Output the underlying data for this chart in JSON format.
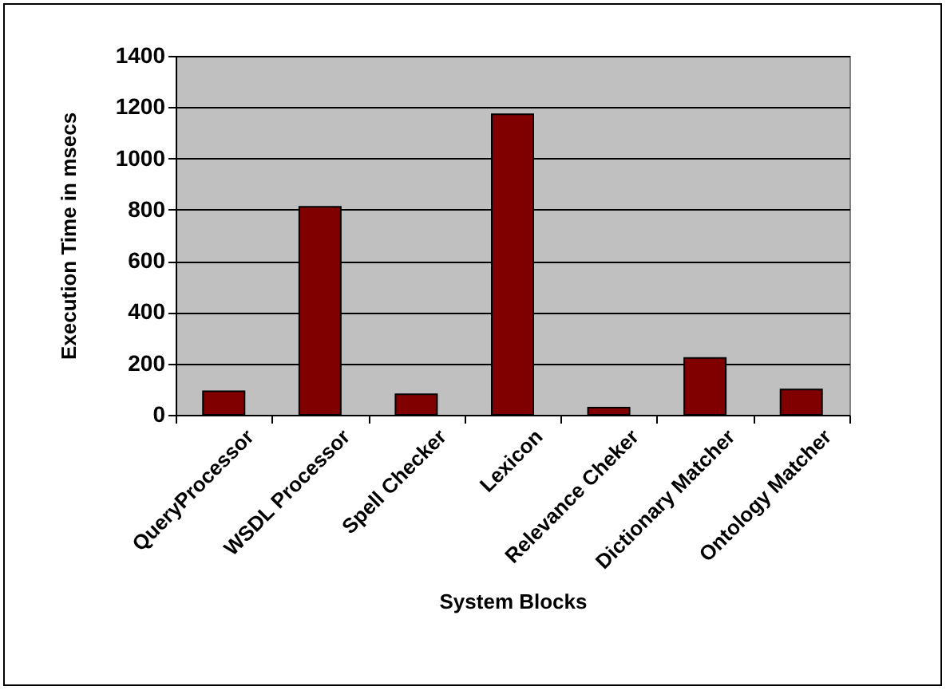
{
  "chart_data": {
    "type": "bar",
    "xlabel": "System Blocks",
    "ylabel": "Execution Time in msecs",
    "categories": [
      "QueryProcessor",
      "WSDL Processor",
      "Spell Checker",
      "Lexicon",
      "Relevance Cheker",
      "Dictionary Matcher",
      "Ontology Matcher"
    ],
    "values": [
      92,
      811,
      80,
      1172,
      28,
      222,
      99
    ],
    "color": "#800000",
    "ylim": [
      0,
      1400
    ],
    "yticks": [
      0,
      200,
      400,
      600,
      800,
      1000,
      1200,
      1400
    ],
    "grid": "y"
  }
}
